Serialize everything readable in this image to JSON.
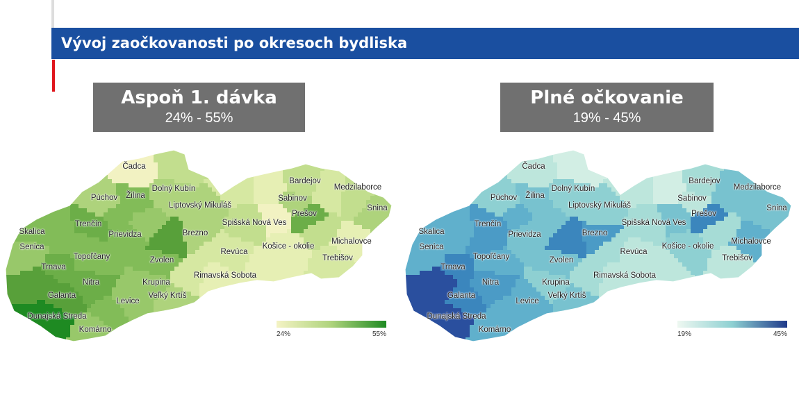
{
  "header": {
    "title": "Vývoj zaočkovanosti po okresoch bydliska"
  },
  "maps": [
    {
      "title": "Aspoň 1. dávka",
      "range": "24% - 55%",
      "legend": {
        "min": "24%",
        "max": "55%",
        "color_low": "#f4f3c4",
        "color_high": "#1e8a22"
      },
      "palette": [
        "#f2f2c2",
        "#e6efb4",
        "#d6e8a2",
        "#c2de8e",
        "#aed37c",
        "#98c86a",
        "#82bc58",
        "#6cae48",
        "#58a03a"
      ],
      "dark": "#1e8a22"
    },
    {
      "title": "Plné očkovanie",
      "range": "19% - 45%",
      "legend": {
        "min": "19%",
        "max": "45%",
        "color_low": "#eef8f1",
        "color_high": "#1f3a8a"
      },
      "palette": [
        "#e6f5ec",
        "#d2eee4",
        "#bde6dc",
        "#a6dcd6",
        "#8ed0d2",
        "#78c2cf",
        "#60b0cc",
        "#4b9bc6",
        "#3b86bd"
      ],
      "dark": "#2a4f9e"
    }
  ],
  "districts": [
    "Čadca",
    "Dolný Kubín",
    "Púchov",
    "Žilina",
    "Liptovský Mikuláš",
    "Bardejov",
    "Medzilaborce",
    "Sabinov",
    "Prešov",
    "Snina",
    "Spišská Nová Ves",
    "Trenčín",
    "Skalica",
    "Prievidza",
    "Brezno",
    "Senica",
    "Košice - okolie",
    "Michalovce",
    "Revúca",
    "Topoľčany",
    "Trnava",
    "Zvolen",
    "Trebišov",
    "Rimavská Sobota",
    "Nitra",
    "Krupina",
    "Galanta",
    "Veľký Krtíš",
    "Levice",
    "Dunajská Streda",
    "Komárno"
  ]
}
